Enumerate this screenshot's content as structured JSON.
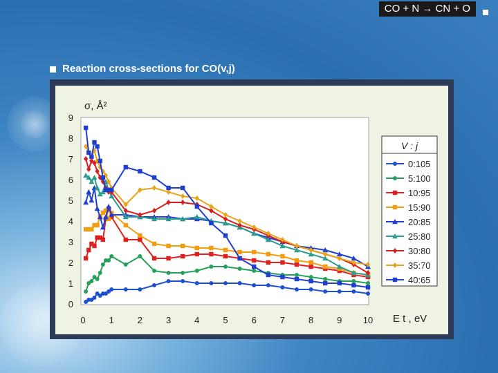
{
  "header": {
    "title": "CO + N → CN + O"
  },
  "section": {
    "title": "Reaction cross-sections for CO(v,j)"
  },
  "chart_data": {
    "type": "line",
    "ylabel": "σ,  Å²",
    "xlabel": "E t , eV",
    "xlim": [
      0,
      10
    ],
    "ylim": [
      0,
      9
    ],
    "xticks": [
      "0",
      "1",
      "2",
      "3",
      "4",
      "5",
      "6",
      "7",
      "8",
      "9",
      "10"
    ],
    "yticks": [
      "0",
      "1",
      "2",
      "3",
      "4",
      "5",
      "6",
      "7",
      "8",
      "9"
    ],
    "legend_title": "V : j",
    "legend_position": "right",
    "series": [
      {
        "name": "0:105",
        "color": "#1f4fd1",
        "marker": "circle",
        "x": [
          0.1,
          0.2,
          0.3,
          0.4,
          0.5,
          0.6,
          0.7,
          0.8,
          0.9,
          1,
          1.5,
          2,
          2.5,
          3,
          3.5,
          4,
          4.5,
          5,
          5.5,
          6,
          6.5,
          7,
          7.5,
          8,
          8.5,
          9,
          9.5,
          10
        ],
        "y": [
          0.1,
          0.2,
          0.2,
          0.3,
          0.5,
          0.4,
          0.5,
          0.5,
          0.6,
          0.7,
          0.7,
          0.7,
          0.9,
          1.1,
          1.1,
          1.0,
          1.0,
          1.0,
          1.0,
          0.9,
          0.9,
          0.8,
          0.7,
          0.7,
          0.6,
          0.6,
          0.6,
          0.5
        ]
      },
      {
        "name": "5:100",
        "color": "#27a05a",
        "marker": "circle",
        "x": [
          0.1,
          0.2,
          0.3,
          0.4,
          0.5,
          0.6,
          0.7,
          0.8,
          0.9,
          1,
          1.5,
          2,
          2.5,
          3,
          3.5,
          4,
          4.5,
          5,
          5.5,
          6,
          6.5,
          7,
          7.5,
          8,
          8.5,
          9,
          9.5,
          10
        ],
        "y": [
          0.6,
          1.0,
          1.1,
          1.3,
          1.2,
          1.5,
          1.9,
          2.1,
          2.1,
          2.3,
          1.9,
          2.3,
          1.6,
          1.5,
          1.5,
          1.6,
          1.8,
          1.8,
          1.7,
          1.6,
          1.5,
          1.4,
          1.4,
          1.3,
          1.2,
          1.1,
          1.1,
          1.0
        ]
      },
      {
        "name": "10:95",
        "color": "#e02020",
        "marker": "square",
        "x": [
          0.1,
          0.2,
          0.3,
          0.4,
          0.5,
          0.6,
          0.7,
          0.8,
          0.9,
          1,
          1.5,
          2,
          2.5,
          3,
          3.5,
          4,
          4.5,
          5,
          5.5,
          6,
          6.5,
          7,
          7.5,
          8,
          8.5,
          9,
          9.5,
          10
        ],
        "y": [
          2.2,
          2.6,
          2.9,
          2.8,
          3.2,
          3.2,
          3.1,
          4.1,
          4.6,
          4.2,
          3.1,
          3.1,
          2.2,
          2.2,
          2.3,
          2.4,
          2.4,
          2.3,
          2.2,
          2.1,
          2.0,
          2.0,
          1.9,
          1.8,
          1.7,
          1.6,
          1.4,
          1.3
        ]
      },
      {
        "name": "15:90",
        "color": "#f39c12",
        "marker": "square",
        "x": [
          0.1,
          0.2,
          0.3,
          0.4,
          0.5,
          0.6,
          0.7,
          0.8,
          0.9,
          1,
          1.5,
          2,
          2.5,
          3,
          3.5,
          4,
          4.5,
          5,
          5.5,
          6,
          6.5,
          7,
          7.5,
          8,
          8.5,
          9,
          9.5,
          10
        ],
        "y": [
          3.6,
          3.6,
          3.6,
          3.8,
          3.8,
          4.2,
          4.4,
          4.5,
          4.1,
          4.4,
          3.8,
          3.3,
          2.9,
          2.8,
          2.8,
          2.7,
          2.7,
          2.6,
          2.5,
          2.5,
          2.4,
          2.3,
          2.1,
          2.0,
          1.8,
          1.7,
          1.5,
          1.4
        ]
      },
      {
        "name": "20:85",
        "color": "#1f3fcf",
        "marker": "triangle",
        "x": [
          0.1,
          0.2,
          0.3,
          0.4,
          0.5,
          0.6,
          0.7,
          0.8,
          0.9,
          1,
          1.5,
          2,
          2.5,
          3,
          3.5,
          4,
          4.5,
          5,
          5.5,
          6,
          6.5,
          7,
          7.5,
          8,
          8.5,
          9,
          9.5,
          10
        ],
        "y": [
          4.9,
          5.4,
          5.0,
          5.6,
          4.6,
          4.2,
          3.7,
          4.2,
          4.7,
          4.3,
          4.3,
          4.2,
          4.2,
          4.2,
          4.1,
          4.1,
          4.0,
          3.9,
          3.7,
          3.4,
          3.2,
          3.0,
          2.8,
          2.7,
          2.6,
          2.4,
          2.2,
          1.8
        ]
      },
      {
        "name": "25:80",
        "color": "#2a9d8f",
        "marker": "triangle",
        "x": [
          0.1,
          0.2,
          0.3,
          0.4,
          0.5,
          0.6,
          0.7,
          0.8,
          0.9,
          1,
          1.5,
          2,
          2.5,
          3,
          3.5,
          4,
          4.5,
          5,
          5.5,
          6,
          6.5,
          7,
          7.5,
          8,
          8.5,
          9,
          9.5,
          10
        ],
        "y": [
          6.2,
          6.1,
          5.9,
          6.1,
          5.6,
          5.3,
          5.4,
          5.9,
          5.5,
          5.2,
          4.2,
          4.2,
          4.1,
          4.1,
          4.1,
          4.2,
          4.0,
          3.9,
          3.7,
          3.4,
          3.1,
          2.8,
          2.6,
          2.4,
          2.2,
          1.8,
          1.5,
          1.4
        ]
      },
      {
        "name": "30:80",
        "color": "#d81e1e",
        "marker": "diamond",
        "x": [
          0.1,
          0.2,
          0.3,
          0.4,
          0.5,
          0.6,
          0.7,
          0.8,
          0.9,
          1,
          1.5,
          2,
          2.5,
          3,
          3.5,
          4,
          4.5,
          5,
          5.5,
          6,
          6.5,
          7,
          7.5,
          8,
          8.5,
          9,
          9.5,
          10
        ],
        "y": [
          7.0,
          6.5,
          6.9,
          6.8,
          6.4,
          6.1,
          5.9,
          5.6,
          5.4,
          5.4,
          4.5,
          4.3,
          4.5,
          4.9,
          4.9,
          4.8,
          4.5,
          4.1,
          3.8,
          3.6,
          3.3,
          3.0,
          2.8,
          2.6,
          2.4,
          2.2,
          1.9,
          1.5
        ]
      },
      {
        "name": "35:70",
        "color": "#e8a41a",
        "marker": "diamond",
        "x": [
          0.1,
          0.2,
          0.3,
          0.4,
          0.5,
          0.6,
          0.7,
          0.8,
          0.9,
          1,
          1.5,
          2,
          2.5,
          3,
          3.5,
          4,
          4.5,
          5,
          5.5,
          6,
          6.5,
          7,
          7.5,
          8,
          8.5,
          9,
          9.5,
          10
        ],
        "y": [
          7.6,
          7.3,
          7.1,
          7.4,
          6.9,
          6.6,
          6.4,
          6.2,
          5.9,
          5.6,
          4.8,
          5.5,
          5.6,
          5.4,
          5.2,
          5.1,
          4.7,
          4.3,
          4.0,
          3.7,
          3.4,
          3.1,
          2.8,
          2.6,
          2.4,
          2.2,
          2.0,
          1.9
        ]
      },
      {
        "name": "40:65",
        "color": "#1f3fcf",
        "marker": "square",
        "x": [
          0.1,
          0.2,
          0.3,
          0.4,
          0.5,
          0.6,
          0.7,
          0.8,
          0.9,
          1,
          1.5,
          2,
          2.5,
          3,
          3.5,
          4,
          4.5,
          5,
          5.5,
          6,
          6.5,
          7,
          7.5,
          8,
          8.5,
          9,
          9.5,
          10
        ],
        "y": [
          8.5,
          7.3,
          7.1,
          7.8,
          7.6,
          6.9,
          6.1,
          5.5,
          5.5,
          5.5,
          6.6,
          6.4,
          6.1,
          5.6,
          5.6,
          4.7,
          3.9,
          3.3,
          2.2,
          1.8,
          1.4,
          1.3,
          1.2,
          1.1,
          1.0,
          1.0,
          0.9,
          0.8
        ]
      }
    ]
  }
}
